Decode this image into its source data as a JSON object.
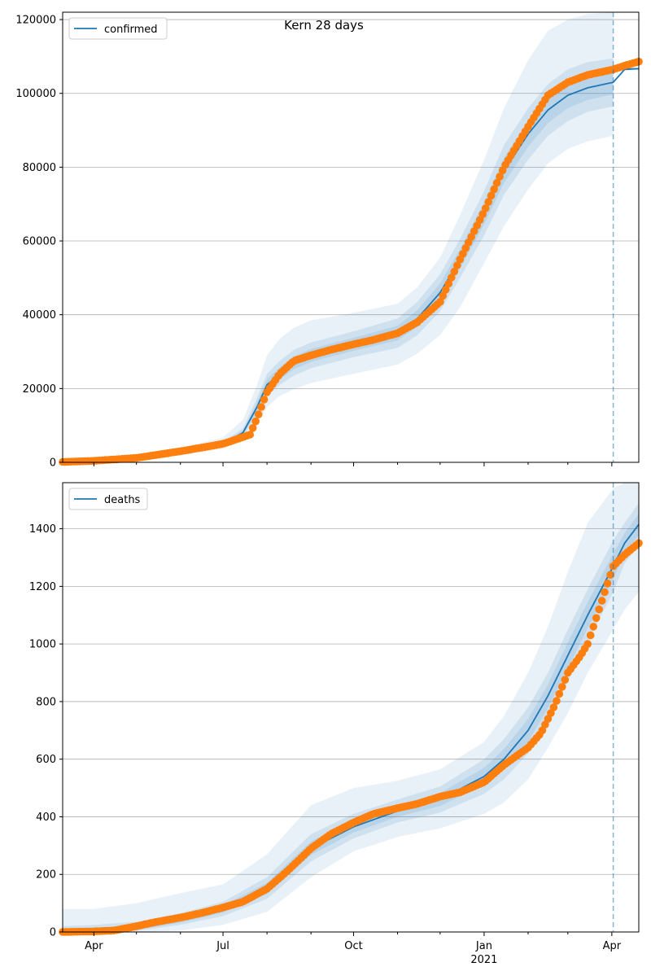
{
  "figure": {
    "title": "Kern 28 days",
    "x_tick_labels": [
      "Apr",
      "Jul",
      "Oct",
      "Jan",
      "Apr"
    ],
    "x_tick_sublabel": "2021"
  },
  "chart_data": [
    {
      "type": "line",
      "subplot": "top",
      "title": "Kern 28 days",
      "legend": [
        "confirmed"
      ],
      "legend_position": "top-left",
      "xlim": [
        "2020-03-10",
        "2021-04-20"
      ],
      "ylim": [
        0,
        122000
      ],
      "y_ticks": [
        0,
        20000,
        40000,
        60000,
        80000,
        100000,
        120000
      ],
      "y_tick_labels": [
        "0",
        "20000",
        "40000",
        "60000",
        "80000",
        "100000",
        "120000"
      ],
      "grid": "horizontal",
      "forecast_start": "2021-04-02",
      "colors": {
        "model": "#1f77b4",
        "observed": "#ff7f0e",
        "band": "#1f77b4",
        "divider": "#1f77b4"
      },
      "series": [
        {
          "name": "confirmed",
          "kind": "model-median",
          "x": [
            "2020-03-10",
            "2020-04-01",
            "2020-05-01",
            "2020-06-01",
            "2020-07-01",
            "2020-07-15",
            "2020-07-25",
            "2020-08-01",
            "2020-08-10",
            "2020-08-20",
            "2020-09-01",
            "2020-10-01",
            "2020-11-01",
            "2020-11-15",
            "2020-12-01",
            "2020-12-15",
            "2021-01-01",
            "2021-01-15",
            "2021-02-01",
            "2021-02-15",
            "2021-03-01",
            "2021-03-15",
            "2021-04-02",
            "2021-04-10",
            "2021-04-20"
          ],
          "values": [
            50,
            300,
            1200,
            2800,
            5000,
            8000,
            15000,
            21000,
            24000,
            27000,
            29000,
            32000,
            35000,
            39000,
            46000,
            55000,
            67500,
            79000,
            89000,
            95500,
            99500,
            101500,
            103000,
            106500,
            106700
          ]
        },
        {
          "name": "confirmed",
          "kind": "observed",
          "x": [
            "2020-03-10",
            "2020-04-01",
            "2020-05-01",
            "2020-06-01",
            "2020-07-01",
            "2020-07-20",
            "2020-07-25",
            "2020-08-01",
            "2020-08-10",
            "2020-08-20",
            "2020-09-01",
            "2020-09-15",
            "2020-10-01",
            "2020-10-15",
            "2020-11-01",
            "2020-11-15",
            "2020-12-01",
            "2020-12-15",
            "2021-01-01",
            "2021-01-15",
            "2021-02-01",
            "2021-02-15",
            "2021-03-01",
            "2021-03-15",
            "2021-04-02",
            "2021-04-10",
            "2021-04-20"
          ],
          "values": [
            100,
            400,
            1200,
            3000,
            5000,
            7500,
            12000,
            19000,
            24000,
            27500,
            29000,
            30500,
            32000,
            33200,
            35000,
            38000,
            43500,
            55000,
            68000,
            80000,
            91000,
            99500,
            103000,
            105000,
            106500,
            107500,
            108600
          ]
        },
        {
          "name": "confirmed",
          "kind": "interval-outer",
          "x": [
            "2020-03-10",
            "2020-04-01",
            "2020-05-01",
            "2020-06-01",
            "2020-07-01",
            "2020-07-15",
            "2020-07-25",
            "2020-08-01",
            "2020-08-10",
            "2020-08-20",
            "2020-09-01",
            "2020-10-01",
            "2020-11-01",
            "2020-11-15",
            "2020-12-01",
            "2020-12-15",
            "2021-01-01",
            "2021-01-15",
            "2021-02-01",
            "2021-02-15",
            "2021-03-01",
            "2021-03-15",
            "2021-04-02"
          ],
          "low": [
            0,
            150,
            800,
            2000,
            3800,
            6000,
            10000,
            15000,
            18000,
            19800,
            21500,
            24000,
            26500,
            29500,
            34500,
            42000,
            54000,
            64000,
            74000,
            81000,
            85000,
            87000,
            88500
          ],
          "high": [
            200,
            600,
            1800,
            3800,
            6800,
            11500,
            21000,
            29000,
            33500,
            36500,
            38500,
            40500,
            43000,
            47500,
            55500,
            67000,
            82000,
            96000,
            109000,
            117000,
            120000,
            121500,
            122000
          ]
        },
        {
          "name": "confirmed",
          "kind": "interval-inner",
          "x": [
            "2020-03-10",
            "2020-04-01",
            "2020-05-01",
            "2020-06-01",
            "2020-07-01",
            "2020-07-15",
            "2020-07-25",
            "2020-08-01",
            "2020-08-10",
            "2020-08-20",
            "2020-09-01",
            "2020-10-01",
            "2020-11-01",
            "2020-11-15",
            "2020-12-01",
            "2020-12-15",
            "2021-01-01",
            "2021-01-15",
            "2021-02-01",
            "2021-02-15",
            "2021-03-01",
            "2021-03-15",
            "2021-04-02"
          ],
          "low": [
            30,
            220,
            1000,
            2400,
            4400,
            7000,
            12500,
            18000,
            21000,
            23500,
            25500,
            28500,
            31000,
            34500,
            41000,
            50000,
            61500,
            72500,
            82000,
            88500,
            92500,
            95000,
            96500
          ],
          "high": [
            80,
            380,
            1400,
            3200,
            5600,
            9200,
            17500,
            24000,
            27500,
            30500,
            32500,
            35500,
            39000,
            43500,
            51000,
            60500,
            73500,
            86000,
            96000,
            102500,
            106500,
            108500,
            109500
          ]
        },
        {
          "name": "confirmed",
          "kind": "forecast-median",
          "x": [
            "2021-04-02",
            "2021-04-10",
            "2021-04-20"
          ],
          "values": [
            106500,
            106600,
            106700
          ]
        }
      ]
    },
    {
      "type": "line",
      "subplot": "bottom",
      "title": "",
      "legend": [
        "deaths"
      ],
      "legend_position": "top-left",
      "xlim": [
        "2020-03-10",
        "2021-04-20"
      ],
      "ylim": [
        0,
        1560
      ],
      "y_ticks": [
        0,
        200,
        400,
        600,
        800,
        1000,
        1200,
        1400
      ],
      "y_tick_labels": [
        "0",
        "200",
        "400",
        "600",
        "800",
        "1000",
        "1200",
        "1400"
      ],
      "grid": "horizontal",
      "forecast_start": "2021-04-02",
      "x_tick_labels": [
        "Apr",
        "Jul",
        "Oct",
        "Jan",
        "Apr"
      ],
      "x_tick_sublabel": "2021",
      "colors": {
        "model": "#1f77b4",
        "observed": "#ff7f0e",
        "band": "#1f77b4",
        "divider": "#1f77b4"
      },
      "series": [
        {
          "name": "deaths",
          "kind": "model-median",
          "x": [
            "2020-03-10",
            "2020-04-01",
            "2020-05-01",
            "2020-06-01",
            "2020-07-01",
            "2020-08-01",
            "2020-09-01",
            "2020-10-01",
            "2020-11-01",
            "2020-12-01",
            "2021-01-01",
            "2021-01-15",
            "2021-02-01",
            "2021-02-15",
            "2021-03-01",
            "2021-03-15",
            "2021-04-02",
            "2021-04-10",
            "2021-04-20"
          ],
          "values": [
            0,
            3,
            12,
            40,
            80,
            150,
            290,
            365,
            420,
            460,
            540,
            600,
            700,
            820,
            960,
            1100,
            1270,
            1350,
            1415
          ]
        },
        {
          "name": "deaths",
          "kind": "observed",
          "x": [
            "2020-03-10",
            "2020-04-01",
            "2020-04-15",
            "2020-05-01",
            "2020-05-15",
            "2020-06-01",
            "2020-06-15",
            "2020-07-01",
            "2020-07-15",
            "2020-08-01",
            "2020-08-15",
            "2020-09-01",
            "2020-09-15",
            "2020-10-01",
            "2020-10-15",
            "2020-11-01",
            "2020-11-15",
            "2020-12-01",
            "2020-12-15",
            "2021-01-01",
            "2021-01-15",
            "2021-02-01",
            "2021-02-10",
            "2021-02-20",
            "2021-03-01",
            "2021-03-10",
            "2021-03-15",
            "2021-03-25",
            "2021-04-02",
            "2021-04-10",
            "2021-04-20"
          ],
          "values": [
            0,
            2,
            5,
            20,
            35,
            50,
            65,
            85,
            105,
            150,
            210,
            290,
            340,
            380,
            410,
            430,
            445,
            470,
            485,
            520,
            580,
            640,
            690,
            790,
            900,
            960,
            1000,
            1150,
            1270,
            1310,
            1350
          ]
        },
        {
          "name": "deaths",
          "kind": "interval-outer",
          "x": [
            "2020-03-10",
            "2020-04-01",
            "2020-05-01",
            "2020-06-01",
            "2020-07-01",
            "2020-08-01",
            "2020-09-01",
            "2020-10-01",
            "2020-11-01",
            "2020-12-01",
            "2021-01-01",
            "2021-01-15",
            "2021-02-01",
            "2021-02-15",
            "2021-03-01",
            "2021-03-15",
            "2021-04-02",
            "2021-04-10",
            "2021-04-20"
          ],
          "low": [
            0,
            0,
            0,
            5,
            25,
            70,
            190,
            280,
            330,
            360,
            410,
            450,
            530,
            640,
            760,
            900,
            1050,
            1120,
            1180
          ],
          "high": [
            80,
            80,
            100,
            135,
            165,
            270,
            440,
            500,
            525,
            565,
            660,
            750,
            900,
            1060,
            1250,
            1420,
            1540,
            1560,
            1560
          ]
        },
        {
          "name": "deaths",
          "kind": "interval-inner",
          "x": [
            "2020-03-10",
            "2020-04-01",
            "2020-05-01",
            "2020-06-01",
            "2020-07-01",
            "2020-08-01",
            "2020-09-01",
            "2020-10-01",
            "2020-11-01",
            "2020-12-01",
            "2021-01-01",
            "2021-01-15",
            "2021-02-01",
            "2021-02-15",
            "2021-03-01",
            "2021-03-15",
            "2021-04-02",
            "2021-04-10",
            "2021-04-20"
          ],
          "low": [
            0,
            0,
            4,
            25,
            55,
            115,
            245,
            325,
            380,
            415,
            480,
            530,
            620,
            735,
            870,
            1010,
            1180,
            1280,
            1340
          ],
          "high": [
            20,
            25,
            35,
            65,
            105,
            190,
            340,
            410,
            460,
            505,
            600,
            670,
            780,
            900,
            1050,
            1190,
            1360,
            1420,
            1490
          ]
        }
      ]
    }
  ]
}
